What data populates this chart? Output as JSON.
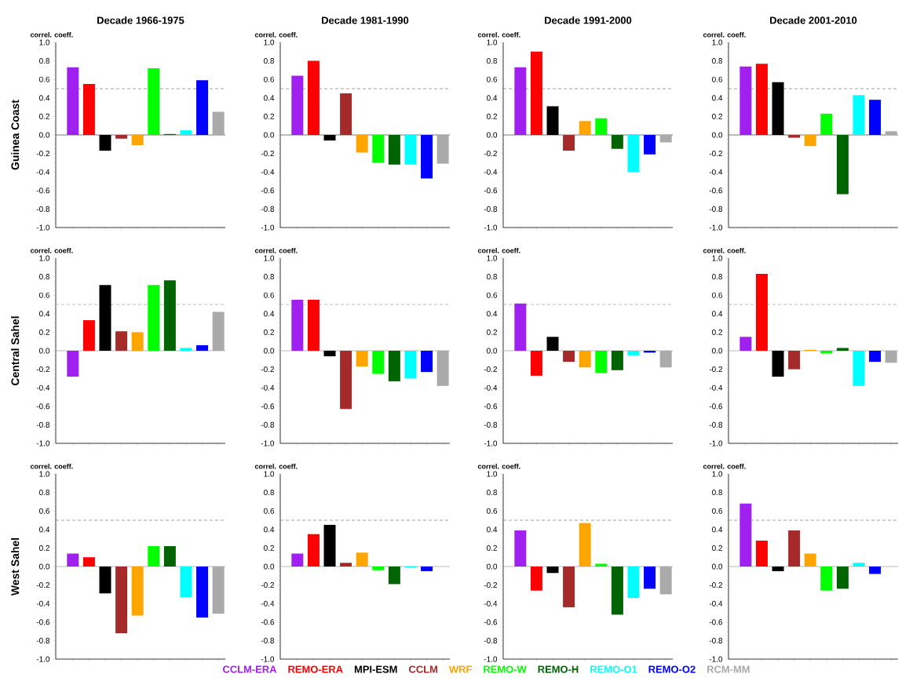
{
  "chart_data": [
    {
      "type": "bar",
      "title": "Decade 1966-1975",
      "ylabel": "correl. coeff.",
      "annotations": [
        "Guinea Coast"
      ],
      "categories": [
        null
      ],
      "ylim": [
        -1.0,
        1.0
      ],
      "yticks": [
        {
          "value": -1.0,
          "label": "-1.0"
        },
        {
          "value": -0.8,
          "label": "-0.8"
        },
        {
          "value": -0.6,
          "label": "-0.6"
        },
        {
          "value": -0.4,
          "label": "-0.4"
        },
        {
          "value": -0.2,
          "label": "-0.2"
        },
        {
          "value": 0.0,
          "label": "0.0"
        },
        {
          "value": 0.2,
          "label": "0.2"
        },
        {
          "value": 0.4,
          "label": "0.4"
        },
        {
          "value": 0.6,
          "label": "0.6"
        },
        {
          "value": 0.8,
          "label": "0.8"
        },
        {
          "value": 1.0,
          "label": "1.0"
        }
      ],
      "ref_lines": [
        {
          "axis": "y",
          "value": 0,
          "color": "#555555",
          "line_style": "solid"
        },
        {
          "axis": "y",
          "value": 0.5,
          "color": "#888888",
          "line_style": "dashed"
        }
      ],
      "series": [
        {
          "color": "#a020f0",
          "values": [
            0.73
          ]
        },
        {
          "color": "#ff0000",
          "values": [
            0.55
          ]
        },
        {
          "color": "#000000",
          "values": [
            -0.17
          ]
        },
        {
          "color": "#a52a2a",
          "values": [
            -0.04
          ]
        },
        {
          "color": "#ffa500",
          "values": [
            -0.11
          ]
        },
        {
          "color": "#00ff00",
          "values": [
            0.72
          ]
        },
        {
          "color": "#006400",
          "values": [
            0.01
          ]
        },
        {
          "color": "#00ffff",
          "values": [
            0.05
          ]
        },
        {
          "color": "#0000ff",
          "values": [
            0.59
          ]
        },
        {
          "color": "#aaaaaa",
          "values": [
            0.25
          ]
        }
      ]
    },
    {
      "type": "bar",
      "title": "Decade 1981-1990",
      "ylabel": "correl. coeff.",
      "categories": [
        null
      ],
      "ylim": [
        -1.0,
        1.0
      ],
      "yticks": [
        {
          "value": -1.0,
          "label": "-1.0"
        },
        {
          "value": -0.8,
          "label": "-0.8"
        },
        {
          "value": -0.6,
          "label": "-0.6"
        },
        {
          "value": -0.4,
          "label": "-0.4"
        },
        {
          "value": -0.2,
          "label": "-0.2"
        },
        {
          "value": 0.0,
          "label": "0.0"
        },
        {
          "value": 0.2,
          "label": "0.2"
        },
        {
          "value": 0.4,
          "label": "0.4"
        },
        {
          "value": 0.6,
          "label": "0.6"
        },
        {
          "value": 0.8,
          "label": "0.8"
        },
        {
          "value": 1.0,
          "label": "1.0"
        }
      ],
      "ref_lines": [
        {
          "axis": "y",
          "value": 0,
          "color": "#555555",
          "line_style": "solid"
        },
        {
          "axis": "y",
          "value": 0.5,
          "color": "#888888",
          "line_style": "dashed"
        }
      ],
      "series": [
        {
          "color": "#a020f0",
          "values": [
            0.64
          ]
        },
        {
          "color": "#ff0000",
          "values": [
            0.8
          ]
        },
        {
          "color": "#000000",
          "values": [
            -0.06
          ]
        },
        {
          "color": "#a52a2a",
          "values": [
            0.45
          ]
        },
        {
          "color": "#ffa500",
          "values": [
            -0.19
          ]
        },
        {
          "color": "#00ff00",
          "values": [
            -0.3
          ]
        },
        {
          "color": "#006400",
          "values": [
            -0.32
          ]
        },
        {
          "color": "#00ffff",
          "values": [
            -0.32
          ]
        },
        {
          "color": "#0000ff",
          "values": [
            -0.47
          ]
        },
        {
          "color": "#aaaaaa",
          "values": [
            -0.31
          ]
        }
      ]
    },
    {
      "type": "bar",
      "title": "Decade 1991-2000",
      "ylabel": "correl. coeff.",
      "categories": [
        null
      ],
      "ylim": [
        -1.0,
        1.0
      ],
      "yticks": [
        {
          "value": -1.0,
          "label": "-1.0"
        },
        {
          "value": -0.8,
          "label": "-0.8"
        },
        {
          "value": -0.6,
          "label": "-0.6"
        },
        {
          "value": -0.4,
          "label": "-0.4"
        },
        {
          "value": -0.2,
          "label": "-0.2"
        },
        {
          "value": 0.0,
          "label": "0.0"
        },
        {
          "value": 0.2,
          "label": "0.2"
        },
        {
          "value": 0.4,
          "label": "0.4"
        },
        {
          "value": 0.6,
          "label": "0.6"
        },
        {
          "value": 0.8,
          "label": "0.8"
        },
        {
          "value": 1.0,
          "label": "1.0"
        }
      ],
      "ref_lines": [
        {
          "axis": "y",
          "value": 0,
          "color": "#555555",
          "line_style": "solid"
        },
        {
          "axis": "y",
          "value": 0.5,
          "color": "#888888",
          "line_style": "dashed"
        }
      ],
      "series": [
        {
          "color": "#a020f0",
          "values": [
            0.73
          ]
        },
        {
          "color": "#ff0000",
          "values": [
            0.9
          ]
        },
        {
          "color": "#000000",
          "values": [
            0.31
          ]
        },
        {
          "color": "#a52a2a",
          "values": [
            -0.17
          ]
        },
        {
          "color": "#ffa500",
          "values": [
            0.15
          ]
        },
        {
          "color": "#00ff00",
          "values": [
            0.18
          ]
        },
        {
          "color": "#006400",
          "values": [
            -0.15
          ]
        },
        {
          "color": "#00ffff",
          "values": [
            -0.4
          ]
        },
        {
          "color": "#0000ff",
          "values": [
            -0.21
          ]
        },
        {
          "color": "#aaaaaa",
          "values": [
            -0.08
          ]
        }
      ]
    },
    {
      "type": "bar",
      "title": "Decade 2001-2010",
      "ylabel": "correl. coeff.",
      "categories": [
        null
      ],
      "ylim": [
        -1.0,
        1.0
      ],
      "yticks": [
        {
          "value": -1.0,
          "label": "-1.0"
        },
        {
          "value": -0.8,
          "label": "-0.8"
        },
        {
          "value": -0.6,
          "label": "-0.6"
        },
        {
          "value": -0.4,
          "label": "-0.4"
        },
        {
          "value": -0.2,
          "label": "-0.2"
        },
        {
          "value": 0.0,
          "label": "0.0"
        },
        {
          "value": 0.2,
          "label": "0.2"
        },
        {
          "value": 0.4,
          "label": "0.4"
        },
        {
          "value": 0.6,
          "label": "0.6"
        },
        {
          "value": 0.8,
          "label": "0.8"
        },
        {
          "value": 1.0,
          "label": "1.0"
        }
      ],
      "ref_lines": [
        {
          "axis": "y",
          "value": 0,
          "color": "#555555",
          "line_style": "solid"
        },
        {
          "axis": "y",
          "value": 0.5,
          "color": "#888888",
          "line_style": "dashed"
        }
      ],
      "series": [
        {
          "color": "#a020f0",
          "values": [
            0.74
          ]
        },
        {
          "color": "#ff0000",
          "values": [
            0.77
          ]
        },
        {
          "color": "#000000",
          "values": [
            0.57
          ]
        },
        {
          "color": "#a52a2a",
          "values": [
            -0.03
          ]
        },
        {
          "color": "#ffa500",
          "values": [
            -0.12
          ]
        },
        {
          "color": "#00ff00",
          "values": [
            0.23
          ]
        },
        {
          "color": "#006400",
          "values": [
            -0.64
          ]
        },
        {
          "color": "#00ffff",
          "values": [
            0.43
          ]
        },
        {
          "color": "#0000ff",
          "values": [
            0.38
          ]
        },
        {
          "color": "#aaaaaa",
          "values": [
            0.04
          ]
        }
      ]
    },
    {
      "type": "bar",
      "ylabel": "correl. coeff.",
      "annotations": [
        "Central Sahel"
      ],
      "categories": [
        null
      ],
      "ylim": [
        -1.0,
        1.0
      ],
      "yticks": [
        {
          "value": -1.0,
          "label": "-1.0"
        },
        {
          "value": -0.8,
          "label": "-0.8"
        },
        {
          "value": -0.6,
          "label": "-0.6"
        },
        {
          "value": -0.4,
          "label": "-0.4"
        },
        {
          "value": -0.2,
          "label": "-0.2"
        },
        {
          "value": 0.0,
          "label": "0.0"
        },
        {
          "value": 0.2,
          "label": "0.2"
        },
        {
          "value": 0.4,
          "label": "0.4"
        },
        {
          "value": 0.6,
          "label": "0.6"
        },
        {
          "value": 0.8,
          "label": "0.8"
        },
        {
          "value": 1.0,
          "label": "1.0"
        }
      ],
      "ref_lines": [
        {
          "axis": "y",
          "value": 0,
          "color": "#aaaaaa",
          "line_style": "solid"
        },
        {
          "axis": "y",
          "value": 0.5,
          "color": "#aaaaaa",
          "line_style": "dashed"
        }
      ],
      "series": [
        {
          "color": "#a020f0",
          "values": [
            -0.28
          ]
        },
        {
          "color": "#ff0000",
          "values": [
            0.33
          ]
        },
        {
          "color": "#000000",
          "values": [
            0.71
          ]
        },
        {
          "color": "#a52a2a",
          "values": [
            0.21
          ]
        },
        {
          "color": "#ffa500",
          "values": [
            0.2
          ]
        },
        {
          "color": "#00ff00",
          "values": [
            0.71
          ]
        },
        {
          "color": "#006400",
          "values": [
            0.76
          ]
        },
        {
          "color": "#00ffff",
          "values": [
            0.03
          ]
        },
        {
          "color": "#0000ff",
          "values": [
            0.06
          ]
        },
        {
          "color": "#aaaaaa",
          "values": [
            0.42
          ]
        }
      ]
    },
    {
      "type": "bar",
      "ylabel": "correl. coeff.",
      "categories": [
        null
      ],
      "ylim": [
        -1.0,
        1.0
      ],
      "yticks": [
        {
          "value": -1.0,
          "label": "-1.0"
        },
        {
          "value": -0.8,
          "label": "-0.8"
        },
        {
          "value": -0.6,
          "label": "-0.6"
        },
        {
          "value": -0.4,
          "label": "-0.4"
        },
        {
          "value": -0.2,
          "label": "-0.2"
        },
        {
          "value": 0.0,
          "label": "0.0"
        },
        {
          "value": 0.2,
          "label": "0.2"
        },
        {
          "value": 0.4,
          "label": "0.4"
        },
        {
          "value": 0.6,
          "label": "0.6"
        },
        {
          "value": 0.8,
          "label": "0.8"
        },
        {
          "value": 1.0,
          "label": "1.0"
        }
      ],
      "ref_lines": [
        {
          "axis": "y",
          "value": 0,
          "color": "#aaaaaa",
          "line_style": "solid"
        },
        {
          "axis": "y",
          "value": 0.5,
          "color": "#aaaaaa",
          "line_style": "dashed"
        }
      ],
      "series": [
        {
          "color": "#a020f0",
          "values": [
            0.55
          ]
        },
        {
          "color": "#ff0000",
          "values": [
            0.55
          ]
        },
        {
          "color": "#000000",
          "values": [
            -0.06
          ]
        },
        {
          "color": "#a52a2a",
          "values": [
            -0.63
          ]
        },
        {
          "color": "#ffa500",
          "values": [
            -0.17
          ]
        },
        {
          "color": "#00ff00",
          "values": [
            -0.25
          ]
        },
        {
          "color": "#006400",
          "values": [
            -0.33
          ]
        },
        {
          "color": "#00ffff",
          "values": [
            -0.3
          ]
        },
        {
          "color": "#0000ff",
          "values": [
            -0.23
          ]
        },
        {
          "color": "#aaaaaa",
          "values": [
            -0.38
          ]
        }
      ]
    },
    {
      "type": "bar",
      "ylabel": "correl. coeff.",
      "categories": [
        null
      ],
      "ylim": [
        -1.0,
        1.0
      ],
      "yticks": [
        {
          "value": -1.0,
          "label": "-1.0"
        },
        {
          "value": -0.8,
          "label": "-0.8"
        },
        {
          "value": -0.6,
          "label": "-0.6"
        },
        {
          "value": -0.4,
          "label": "-0.4"
        },
        {
          "value": -0.2,
          "label": "-0.2"
        },
        {
          "value": 0.0,
          "label": "0.0"
        },
        {
          "value": 0.2,
          "label": "0.2"
        },
        {
          "value": 0.4,
          "label": "0.4"
        },
        {
          "value": 0.6,
          "label": "0.6"
        },
        {
          "value": 0.8,
          "label": "0.8"
        },
        {
          "value": 1.0,
          "label": "1.0"
        }
      ],
      "ref_lines": [
        {
          "axis": "y",
          "value": 0,
          "color": "#aaaaaa",
          "line_style": "solid"
        },
        {
          "axis": "y",
          "value": 0.5,
          "color": "#aaaaaa",
          "line_style": "dashed"
        }
      ],
      "series": [
        {
          "color": "#a020f0",
          "values": [
            0.51
          ]
        },
        {
          "color": "#ff0000",
          "values": [
            -0.27
          ]
        },
        {
          "color": "#000000",
          "values": [
            0.15
          ]
        },
        {
          "color": "#a52a2a",
          "values": [
            -0.12
          ]
        },
        {
          "color": "#ffa500",
          "values": [
            -0.18
          ]
        },
        {
          "color": "#00ff00",
          "values": [
            -0.24
          ]
        },
        {
          "color": "#006400",
          "values": [
            -0.21
          ]
        },
        {
          "color": "#00ffff",
          "values": [
            -0.05
          ]
        },
        {
          "color": "#0000ff",
          "values": [
            -0.02
          ]
        },
        {
          "color": "#aaaaaa",
          "values": [
            -0.18
          ]
        }
      ]
    },
    {
      "type": "bar",
      "ylabel": "correl. coeff.",
      "categories": [
        null
      ],
      "ylim": [
        -1.0,
        1.0
      ],
      "yticks": [
        {
          "value": -1.0,
          "label": "-1.0"
        },
        {
          "value": -0.8,
          "label": "-0.8"
        },
        {
          "value": -0.6,
          "label": "-0.6"
        },
        {
          "value": -0.4,
          "label": "-0.4"
        },
        {
          "value": -0.2,
          "label": "-0.2"
        },
        {
          "value": 0.0,
          "label": "0.0"
        },
        {
          "value": 0.2,
          "label": "0.2"
        },
        {
          "value": 0.4,
          "label": "0.4"
        },
        {
          "value": 0.6,
          "label": "0.6"
        },
        {
          "value": 0.8,
          "label": "0.8"
        },
        {
          "value": 1.0,
          "label": "1.0"
        }
      ],
      "ref_lines": [
        {
          "axis": "y",
          "value": 0,
          "color": "#aaaaaa",
          "line_style": "solid"
        },
        {
          "axis": "y",
          "value": 0.5,
          "color": "#aaaaaa",
          "line_style": "dashed"
        }
      ],
      "series": [
        {
          "color": "#a020f0",
          "values": [
            0.15
          ]
        },
        {
          "color": "#ff0000",
          "values": [
            0.83
          ]
        },
        {
          "color": "#000000",
          "values": [
            -0.28
          ]
        },
        {
          "color": "#a52a2a",
          "values": [
            -0.2
          ]
        },
        {
          "color": "#ffa500",
          "values": [
            0.01
          ]
        },
        {
          "color": "#00ff00",
          "values": [
            -0.03
          ]
        },
        {
          "color": "#006400",
          "values": [
            0.03
          ]
        },
        {
          "color": "#00ffff",
          "values": [
            -0.38
          ]
        },
        {
          "color": "#0000ff",
          "values": [
            -0.12
          ]
        },
        {
          "color": "#aaaaaa",
          "values": [
            -0.13
          ]
        }
      ]
    },
    {
      "type": "bar",
      "ylabel": "correl. coeff.",
      "annotations": [
        "West Sahel"
      ],
      "categories": [
        null
      ],
      "ylim": [
        -1.0,
        1.0
      ],
      "yticks": [
        {
          "value": -1.0,
          "label": "-1.0"
        },
        {
          "value": -0.8,
          "label": "-0.8"
        },
        {
          "value": -0.6,
          "label": "-0.6"
        },
        {
          "value": -0.4,
          "label": "-0.4"
        },
        {
          "value": -0.2,
          "label": "-0.2"
        },
        {
          "value": 0.0,
          "label": "0.0"
        },
        {
          "value": 0.2,
          "label": "0.2"
        },
        {
          "value": 0.4,
          "label": "0.4"
        },
        {
          "value": 0.6,
          "label": "0.6"
        },
        {
          "value": 0.8,
          "label": "0.8"
        },
        {
          "value": 1.0,
          "label": "1.0"
        }
      ],
      "ref_lines": [
        {
          "axis": "y",
          "value": 0,
          "color": "#aaaaaa",
          "line_style": "solid"
        },
        {
          "axis": "y",
          "value": 0.5,
          "color": "#888888",
          "line_style": "dashed"
        }
      ],
      "series": [
        {
          "color": "#a020f0",
          "values": [
            0.14
          ]
        },
        {
          "color": "#ff0000",
          "values": [
            0.1
          ]
        },
        {
          "color": "#000000",
          "values": [
            -0.29
          ]
        },
        {
          "color": "#a52a2a",
          "values": [
            -0.72
          ]
        },
        {
          "color": "#ffa500",
          "values": [
            -0.53
          ]
        },
        {
          "color": "#00ff00",
          "values": [
            0.22
          ]
        },
        {
          "color": "#006400",
          "values": [
            0.22
          ]
        },
        {
          "color": "#00ffff",
          "values": [
            -0.33
          ]
        },
        {
          "color": "#0000ff",
          "values": [
            -0.55
          ]
        },
        {
          "color": "#aaaaaa",
          "values": [
            -0.51
          ]
        }
      ]
    },
    {
      "type": "bar",
      "ylabel": "correl. coeff.",
      "categories": [
        null
      ],
      "ylim": [
        -1.0,
        1.0
      ],
      "yticks": [
        {
          "value": -1.0,
          "label": "-1.0"
        },
        {
          "value": -0.8,
          "label": "-0.8"
        },
        {
          "value": -0.6,
          "label": "-0.6"
        },
        {
          "value": -0.4,
          "label": "-0.4"
        },
        {
          "value": -0.2,
          "label": "-0.2"
        },
        {
          "value": 0.0,
          "label": "0.0"
        },
        {
          "value": 0.2,
          "label": "0.2"
        },
        {
          "value": 0.4,
          "label": "0.4"
        },
        {
          "value": 0.6,
          "label": "0.6"
        },
        {
          "value": 0.8,
          "label": "0.8"
        },
        {
          "value": 1.0,
          "label": "1.0"
        }
      ],
      "ref_lines": [
        {
          "axis": "y",
          "value": 0,
          "color": "#aaaaaa",
          "line_style": "solid"
        },
        {
          "axis": "y",
          "value": 0.5,
          "color": "#888888",
          "line_style": "dashed"
        }
      ],
      "series": [
        {
          "color": "#a020f0",
          "values": [
            0.14
          ]
        },
        {
          "color": "#ff0000",
          "values": [
            0.35
          ]
        },
        {
          "color": "#000000",
          "values": [
            0.45
          ]
        },
        {
          "color": "#a52a2a",
          "values": [
            0.04
          ]
        },
        {
          "color": "#ffa500",
          "values": [
            0.15
          ]
        },
        {
          "color": "#00ff00",
          "values": [
            -0.04
          ]
        },
        {
          "color": "#006400",
          "values": [
            -0.19
          ]
        },
        {
          "color": "#00ffff",
          "values": [
            -0.01
          ]
        },
        {
          "color": "#0000ff",
          "values": [
            -0.05
          ]
        },
        {
          "color": "#aaaaaa",
          "values": [
            null
          ]
        }
      ]
    },
    {
      "type": "bar",
      "ylabel": "correl. coeff.",
      "categories": [
        null
      ],
      "ylim": [
        -1.0,
        1.0
      ],
      "yticks": [
        {
          "value": -1.0,
          "label": "-1.0"
        },
        {
          "value": -0.8,
          "label": "-0.8"
        },
        {
          "value": -0.6,
          "label": "-0.6"
        },
        {
          "value": -0.4,
          "label": "-0.4"
        },
        {
          "value": -0.2,
          "label": "-0.2"
        },
        {
          "value": 0.0,
          "label": "0.0"
        },
        {
          "value": 0.2,
          "label": "0.2"
        },
        {
          "value": 0.4,
          "label": "0.4"
        },
        {
          "value": 0.6,
          "label": "0.6"
        },
        {
          "value": 0.8,
          "label": "0.8"
        },
        {
          "value": 1.0,
          "label": "1.0"
        }
      ],
      "ref_lines": [
        {
          "axis": "y",
          "value": 0,
          "color": "#aaaaaa",
          "line_style": "solid"
        },
        {
          "axis": "y",
          "value": 0.5,
          "color": "#888888",
          "line_style": "dashed"
        }
      ],
      "legend": "bottom",
      "series": [
        {
          "name": "CCLM-ERA",
          "color": "#a020f0",
          "values": [
            0.39
          ]
        },
        {
          "name": "REMO-ERA",
          "color": "#ff0000",
          "values": [
            -0.26
          ]
        },
        {
          "name": "MPI-ESM",
          "color": "#000000",
          "values": [
            -0.07
          ]
        },
        {
          "name": "CCLM",
          "color": "#a52a2a",
          "values": [
            -0.44
          ]
        },
        {
          "name": "WRF",
          "color": "#ffa500",
          "values": [
            0.47
          ]
        },
        {
          "name": "REMO-W",
          "color": "#00ff00",
          "values": [
            0.03
          ]
        },
        {
          "name": "REMO-H",
          "color": "#006400",
          "values": [
            -0.52
          ]
        },
        {
          "name": "REMO-O1",
          "color": "#00ffff",
          "values": [
            -0.34
          ]
        },
        {
          "name": "REMO-O2",
          "color": "#0000ff",
          "values": [
            -0.24
          ]
        },
        {
          "name": "RCM-MM",
          "color": "#aaaaaa",
          "values": [
            -0.3
          ]
        }
      ]
    },
    {
      "type": "bar",
      "ylabel": "correl. coeff.",
      "categories": [
        null
      ],
      "ylim": [
        -1.0,
        1.0
      ],
      "yticks": [
        {
          "value": -1.0,
          "label": "-1.0"
        },
        {
          "value": -0.8,
          "label": "-0.8"
        },
        {
          "value": -0.6,
          "label": "-0.6"
        },
        {
          "value": -0.4,
          "label": "-0.4"
        },
        {
          "value": -0.2,
          "label": "-0.2"
        },
        {
          "value": 0.0,
          "label": "0.0"
        },
        {
          "value": 0.2,
          "label": "0.2"
        },
        {
          "value": 0.4,
          "label": "0.4"
        },
        {
          "value": 0.6,
          "label": "0.6"
        },
        {
          "value": 0.8,
          "label": "0.8"
        },
        {
          "value": 1.0,
          "label": "1.0"
        }
      ],
      "ref_lines": [
        {
          "axis": "y",
          "value": 0,
          "color": "#aaaaaa",
          "line_style": "solid"
        },
        {
          "axis": "y",
          "value": 0.5,
          "color": "#888888",
          "line_style": "dashed"
        }
      ],
      "series": [
        {
          "color": "#a020f0",
          "values": [
            0.68
          ]
        },
        {
          "color": "#ff0000",
          "values": [
            0.28
          ]
        },
        {
          "color": "#000000",
          "values": [
            -0.05
          ]
        },
        {
          "color": "#a52a2a",
          "values": [
            0.39
          ]
        },
        {
          "color": "#ffa500",
          "values": [
            0.14
          ]
        },
        {
          "color": "#00ff00",
          "values": [
            -0.26
          ]
        },
        {
          "color": "#006400",
          "values": [
            -0.24
          ]
        },
        {
          "color": "#00ffff",
          "values": [
            0.04
          ]
        },
        {
          "color": "#0000ff",
          "values": [
            -0.08
          ]
        },
        {
          "color": "#aaaaaa",
          "values": [
            null
          ]
        }
      ]
    }
  ]
}
